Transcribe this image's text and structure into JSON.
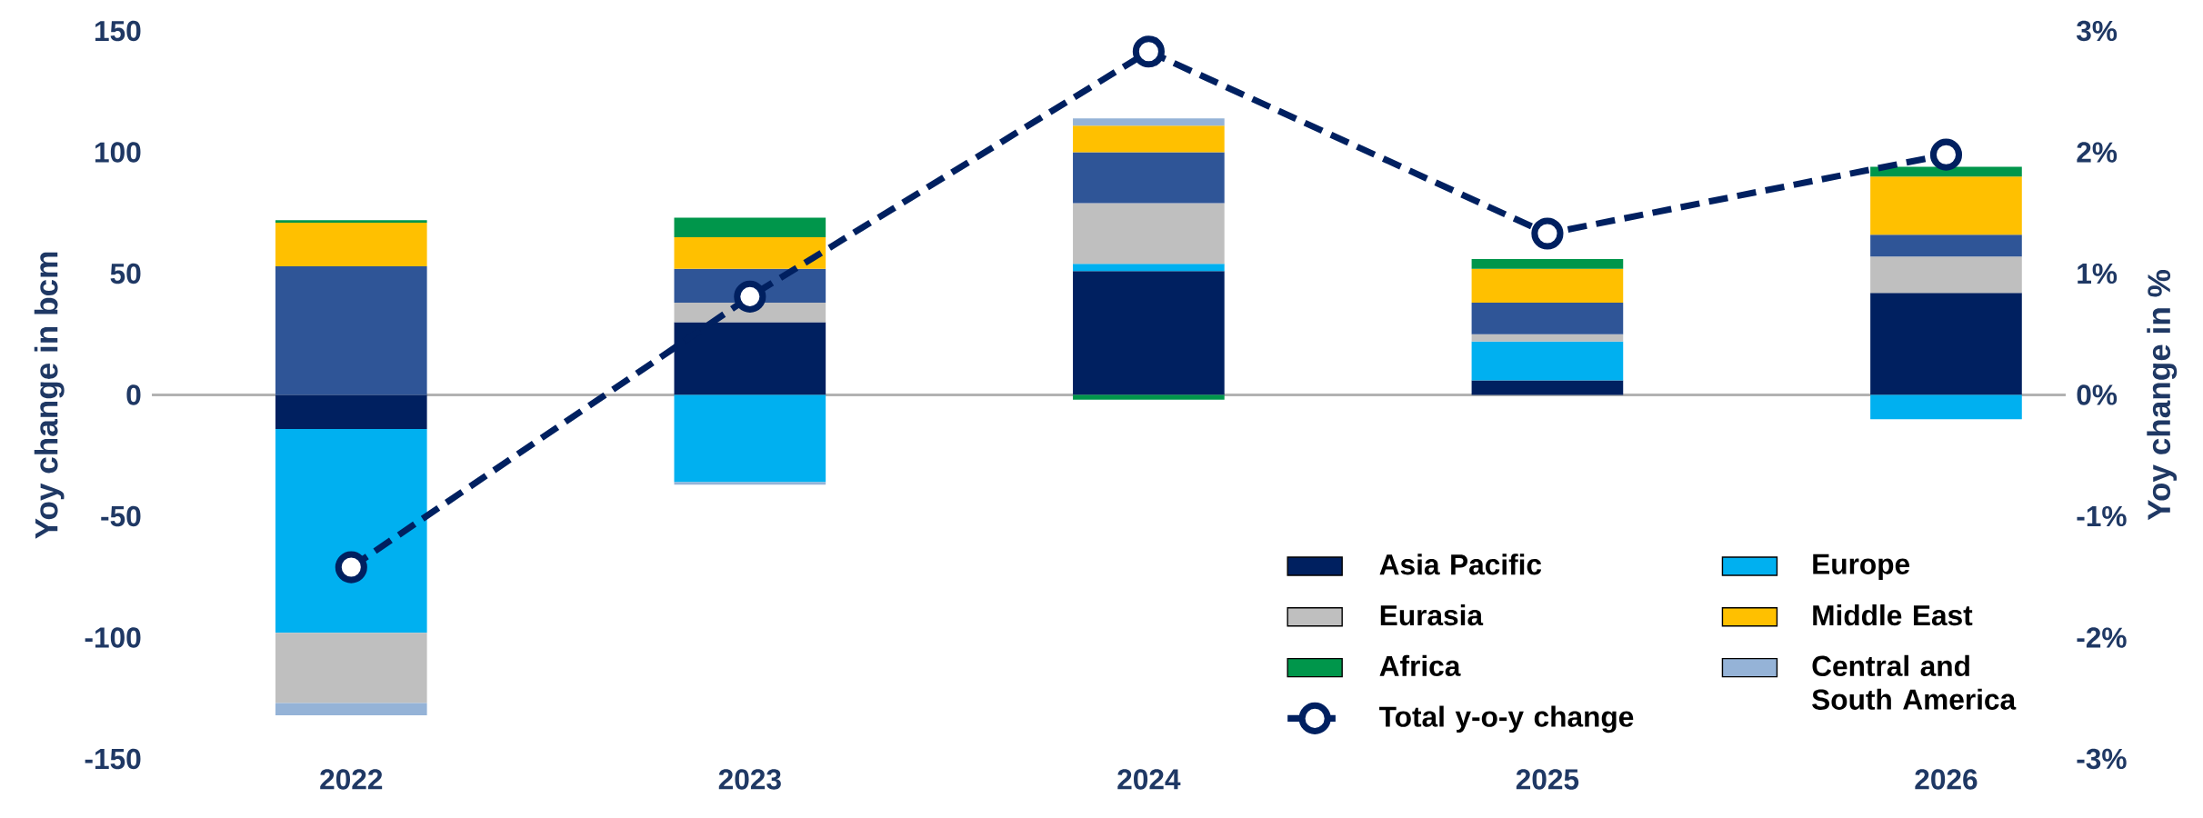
{
  "chart_data": {
    "type": "bar",
    "stacked": true,
    "categories": [
      "2022",
      "2023",
      "2024",
      "2025",
      "2026"
    ],
    "series": [
      {
        "name": "Asia Pacific",
        "color": "#002060",
        "values": [
          -14,
          30,
          51,
          6,
          42
        ]
      },
      {
        "name": "Europe",
        "color": "#00b0f0",
        "values": [
          -84,
          -36,
          3,
          16,
          -10
        ]
      },
      {
        "name": "Eurasia",
        "color": "#bfbfbf",
        "values": [
          -29,
          8,
          25,
          3,
          15
        ]
      },
      {
        "color": "#2f5597",
        "values": [
          53,
          14,
          21,
          13,
          9
        ]
      },
      {
        "name": "Middle East",
        "color": "#ffc000",
        "values": [
          18,
          13,
          11,
          14,
          24
        ]
      },
      {
        "name": "Africa",
        "color": "#00964b",
        "values": [
          1,
          8,
          -2,
          4,
          4
        ]
      },
      {
        "name": "Central and South America",
        "color": "#95b3d7",
        "values": [
          -5,
          -1,
          3,
          null,
          null
        ]
      },
      {
        "name": "Total y-o-y change",
        "type": "line",
        "axis": "y2",
        "color": "#002060",
        "marker": "circle",
        "line_style": "dashed",
        "values": [
          -1.42,
          0.81,
          2.83,
          1.33,
          1.98
        ]
      }
    ],
    "ylabel": "Yoy change in bcm",
    "y2label": "Yoy change in %",
    "ylim": [
      -150,
      150
    ],
    "yticks": [
      -150,
      -100,
      -50,
      0,
      50,
      100,
      150
    ],
    "y2lim": [
      -3,
      3
    ],
    "y2ticks": [
      {
        "value": -3,
        "label": "-3%"
      },
      {
        "value": -2,
        "label": "-2%"
      },
      {
        "value": -1,
        "label": "-1%"
      },
      {
        "value": 0,
        "label": "0%"
      },
      {
        "value": 1,
        "label": "1%"
      },
      {
        "value": 2,
        "label": "2%"
      },
      {
        "value": 3,
        "label": "3%"
      }
    ],
    "legend": "bottom right"
  }
}
